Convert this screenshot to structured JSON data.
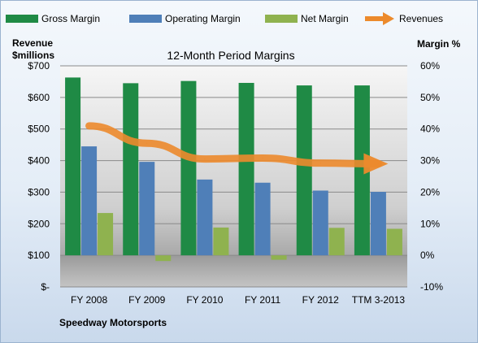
{
  "chart_data": {
    "type": "bar",
    "title": "12-Month Period Margins",
    "company": "Speedway Motorsports",
    "left_axis_label": [
      "Revenue",
      "$millions"
    ],
    "right_axis_label": "Margin %",
    "left_ticks": [
      "$700",
      "$600",
      "$500",
      "$400",
      "$300",
      "$200",
      "$100",
      "$-"
    ],
    "right_ticks": [
      "60%",
      "50%",
      "40%",
      "30%",
      "20%",
      "10%",
      "0%",
      "-10%"
    ],
    "left_ylim": [
      0,
      700
    ],
    "right_ylim": [
      -10,
      60
    ],
    "categories": [
      "FY 2008",
      "FY 2009",
      "FY 2010",
      "FY 2011",
      "FY 2012",
      "TTM 3-2013"
    ],
    "series": [
      {
        "name": "Gross Margin",
        "axis": "right",
        "color": "#1f8a45",
        "values": [
          56.3,
          54.5,
          55.2,
          54.6,
          53.8,
          53.8
        ]
      },
      {
        "name": "Operating Margin",
        "axis": "right",
        "color": "#4f7fb8",
        "values": [
          34.5,
          29.6,
          24.0,
          23.0,
          20.5,
          20.1
        ]
      },
      {
        "name": "Net Margin",
        "axis": "right",
        "color": "#8fb24f",
        "values": [
          13.4,
          -1.8,
          8.8,
          -1.4,
          8.7,
          8.4
        ]
      },
      {
        "name": "Revenues",
        "axis": "left",
        "type": "line",
        "color": "#ec8a2c",
        "values": [
          510,
          455,
          405,
          408,
          392,
          390
        ]
      }
    ],
    "grid": true,
    "legend": "top"
  }
}
